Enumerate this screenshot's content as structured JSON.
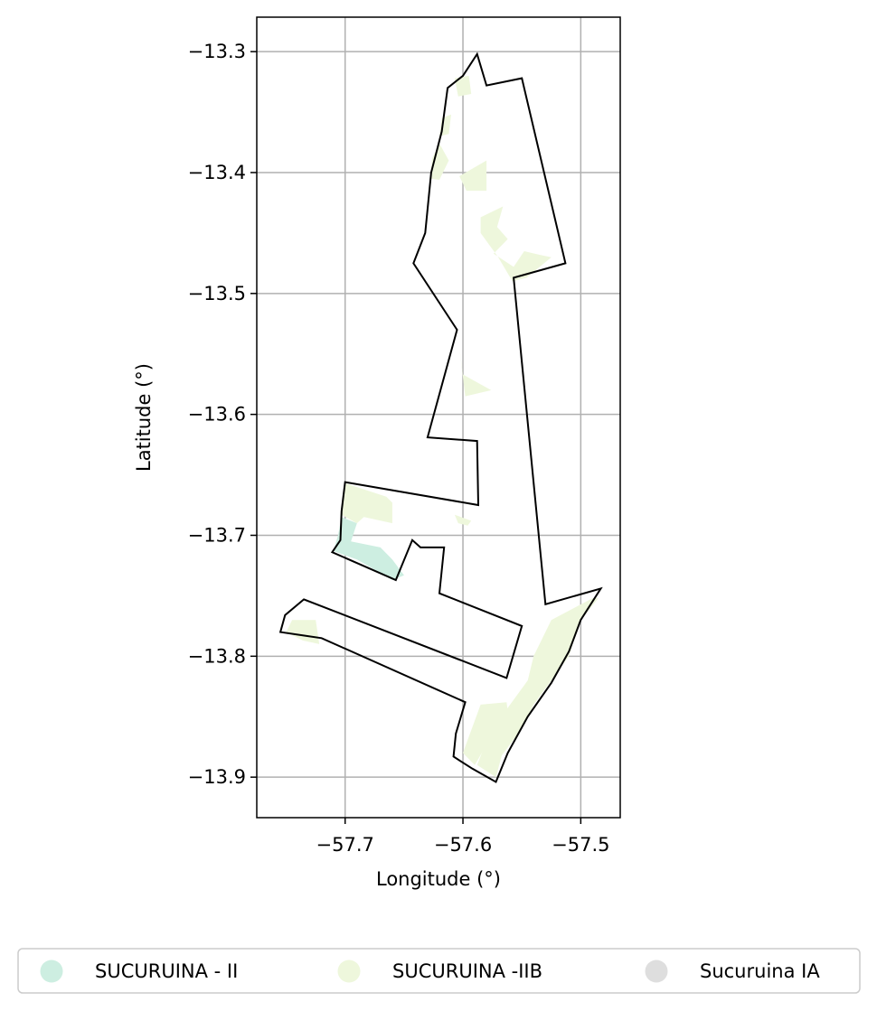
{
  "chart_data": {
    "type": "map",
    "xlabel": "Longitude (°)",
    "ylabel": "Latitude (°)",
    "xlim": [
      -57.775,
      -57.4665
    ],
    "ylim": [
      -13.9335,
      -13.2715
    ],
    "x_ticks": [
      -57.7,
      -57.6,
      -57.5
    ],
    "x_tick_labels": [
      "−57.7",
      "−57.6",
      "−57.5"
    ],
    "y_ticks": [
      -13.3,
      -13.4,
      -13.5,
      -13.6,
      -13.7,
      -13.8,
      -13.9
    ],
    "y_tick_labels": [
      "−13.3",
      "−13.4",
      "−13.5",
      "−13.6",
      "−13.7",
      "−13.8",
      "−13.9"
    ],
    "grid": true,
    "legend_position": "bottom",
    "legend": [
      {
        "label": "SUCURUINA - II",
        "color": "#cdeee1"
      },
      {
        "label": "SUCURUINA -IIB",
        "color": "#eef7dc"
      },
      {
        "label": "Sucuruina IA",
        "color": "#dedede"
      }
    ],
    "boundary": [
      [
        -57.588,
        -13.302
      ],
      [
        -57.58,
        -13.328
      ],
      [
        -57.55,
        -13.322
      ],
      [
        -57.513,
        -13.475
      ],
      [
        -57.557,
        -13.487
      ],
      [
        -57.53,
        -13.757
      ],
      [
        -57.483,
        -13.744
      ],
      [
        -57.5,
        -13.77
      ],
      [
        -57.51,
        -13.796
      ],
      [
        -57.525,
        -13.822
      ],
      [
        -57.545,
        -13.85
      ],
      [
        -57.562,
        -13.88
      ],
      [
        -57.572,
        -13.904
      ],
      [
        -57.592,
        -13.893
      ],
      [
        -57.608,
        -13.883
      ],
      [
        -57.606,
        -13.864
      ],
      [
        -57.598,
        -13.838
      ],
      [
        -57.72,
        -13.785
      ],
      [
        -57.734,
        -13.783
      ],
      [
        -57.755,
        -13.78
      ],
      [
        -57.751,
        -13.766
      ],
      [
        -57.735,
        -13.753
      ],
      [
        -57.563,
        -13.818
      ],
      [
        -57.55,
        -13.775
      ],
      [
        -57.62,
        -13.748
      ],
      [
        -57.616,
        -13.71
      ],
      [
        -57.636,
        -13.71
      ],
      [
        -57.643,
        -13.704
      ],
      [
        -57.657,
        -13.737
      ],
      [
        -57.711,
        -13.714
      ],
      [
        -57.704,
        -13.704
      ],
      [
        -57.703,
        -13.68
      ],
      [
        -57.7,
        -13.656
      ],
      [
        -57.587,
        -13.675
      ],
      [
        -57.588,
        -13.622
      ],
      [
        -57.63,
        -13.619
      ],
      [
        -57.605,
        -13.53
      ],
      [
        -57.642,
        -13.475
      ],
      [
        -57.632,
        -13.45
      ],
      [
        -57.627,
        -13.4
      ],
      [
        -57.618,
        -13.366
      ],
      [
        -57.613,
        -13.33
      ],
      [
        -57.6,
        -13.32
      ]
    ],
    "regions": [
      {
        "series": "SUCURUINA -IIB",
        "polygon": [
          [
            -57.607,
            -13.322
          ],
          [
            -57.595,
            -13.32
          ],
          [
            -57.593,
            -13.335
          ],
          [
            -57.604,
            -13.337
          ]
        ]
      },
      {
        "series": "SUCURUINA -IIB",
        "polygon": [
          [
            -57.618,
            -13.355
          ],
          [
            -57.61,
            -13.352
          ],
          [
            -57.612,
            -13.368
          ],
          [
            -57.62,
            -13.37
          ]
        ]
      },
      {
        "series": "SUCURUINA -IIB",
        "polygon": [
          [
            -57.626,
            -13.388
          ],
          [
            -57.62,
            -13.376
          ],
          [
            -57.612,
            -13.39
          ],
          [
            -57.62,
            -13.406
          ],
          [
            -57.628,
            -13.405
          ]
        ]
      },
      {
        "series": "SUCURUINA -IIB",
        "polygon": [
          [
            -57.603,
            -13.403
          ],
          [
            -57.58,
            -13.39
          ],
          [
            -57.58,
            -13.415
          ],
          [
            -57.597,
            -13.415
          ]
        ]
      },
      {
        "series": "SUCURUINA -IIB",
        "polygon": [
          [
            -57.585,
            -13.437
          ],
          [
            -57.566,
            -13.428
          ],
          [
            -57.571,
            -13.445
          ],
          [
            -57.562,
            -13.455
          ],
          [
            -57.574,
            -13.467
          ],
          [
            -57.557,
            -13.478
          ],
          [
            -57.548,
            -13.465
          ],
          [
            -57.535,
            -13.468
          ],
          [
            -57.525,
            -13.47
          ],
          [
            -57.546,
            -13.487
          ],
          [
            -57.558,
            -13.49
          ],
          [
            -57.57,
            -13.47
          ],
          [
            -57.585,
            -13.45
          ]
        ]
      },
      {
        "series": "SUCURUINA -IIB",
        "polygon": [
          [
            -57.603,
            -13.545
          ],
          [
            -57.6,
            -13.567
          ],
          [
            -57.576,
            -13.58
          ],
          [
            -57.598,
            -13.585
          ]
        ]
      },
      {
        "series": "SUCURUINA -IIB",
        "polygon": [
          [
            -57.7,
            -13.657
          ],
          [
            -57.665,
            -13.668
          ],
          [
            -57.69,
            -13.69
          ],
          [
            -57.703,
            -13.683
          ]
        ]
      },
      {
        "series": "SUCURUINA -IIB",
        "polygon": [
          [
            -57.665,
            -13.668
          ],
          [
            -57.66,
            -13.673
          ],
          [
            -57.66,
            -13.69
          ],
          [
            -57.688,
            -13.684
          ]
        ]
      },
      {
        "series": "SUCURUINA -IIB",
        "polygon": [
          [
            -57.607,
            -13.683
          ],
          [
            -57.593,
            -13.688
          ],
          [
            -57.596,
            -13.692
          ],
          [
            -57.604,
            -13.69
          ]
        ]
      },
      {
        "series": "SUCURUINA -IIB",
        "polygon": [
          [
            -57.745,
            -13.77
          ],
          [
            -57.75,
            -13.78
          ],
          [
            -57.736,
            -13.787
          ],
          [
            -57.722,
            -13.79
          ],
          [
            -57.725,
            -13.77
          ]
        ]
      },
      {
        "series": "SUCURUINA -IIB",
        "polygon": [
          [
            -57.49,
            -13.752
          ],
          [
            -57.525,
            -13.77
          ],
          [
            -57.54,
            -13.8
          ],
          [
            -57.545,
            -13.82
          ],
          [
            -57.56,
            -13.84
          ],
          [
            -57.575,
            -13.86
          ],
          [
            -57.582,
            -13.875
          ],
          [
            -57.588,
            -13.89
          ],
          [
            -57.572,
            -13.9
          ],
          [
            -57.567,
            -13.882
          ],
          [
            -57.55,
            -13.86
          ],
          [
            -57.54,
            -13.84
          ],
          [
            -57.525,
            -13.82
          ],
          [
            -57.51,
            -13.8
          ],
          [
            -57.5,
            -13.77
          ],
          [
            -57.485,
            -13.752
          ]
        ]
      },
      {
        "series": "SUCURUINA -IIB",
        "polygon": [
          [
            -57.585,
            -13.84
          ],
          [
            -57.563,
            -13.838
          ],
          [
            -57.56,
            -13.86
          ],
          [
            -57.575,
            -13.865
          ],
          [
            -57.59,
            -13.89
          ],
          [
            -57.6,
            -13.88
          ]
        ]
      },
      {
        "series": "SUCURUINA - II",
        "polygon": [
          [
            -57.703,
            -13.685
          ],
          [
            -57.69,
            -13.69
          ],
          [
            -57.695,
            -13.705
          ],
          [
            -57.67,
            -13.71
          ],
          [
            -57.66,
            -13.72
          ],
          [
            -57.65,
            -13.733
          ],
          [
            -57.66,
            -13.737
          ],
          [
            -57.69,
            -13.72
          ],
          [
            -57.71,
            -13.713
          ],
          [
            -57.706,
            -13.7
          ]
        ]
      }
    ]
  }
}
